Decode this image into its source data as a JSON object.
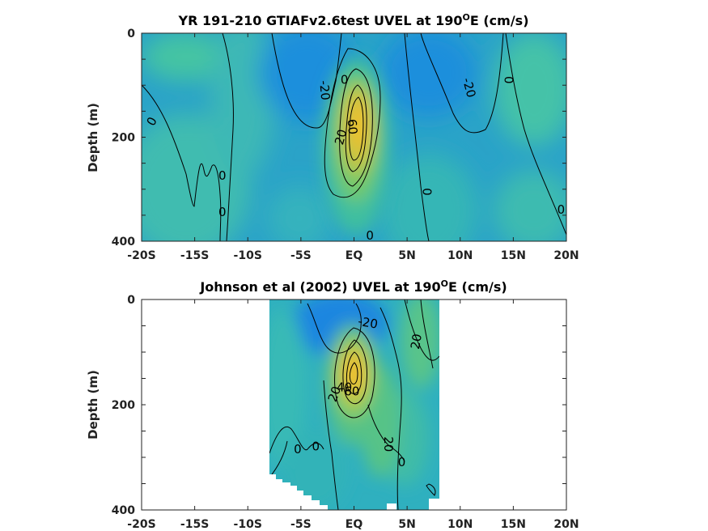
{
  "chart_data": [
    {
      "type": "contour",
      "title": "YR 191-210 GTIAFv2.6test UVEL at 190",
      "title_sup": "O",
      "title_tail": "E (cm/s)",
      "ylabel": "Depth (m)",
      "xlim": [
        -20,
        20
      ],
      "ylim": [
        0,
        400
      ],
      "x_ticks": [
        -20,
        -15,
        -10,
        -5,
        0,
        5,
        10,
        15,
        20
      ],
      "x_tick_labels": [
        "-20S",
        "-15S",
        "-10S",
        "-5S",
        "EQ",
        "5N",
        "10N",
        "15N",
        "20N"
      ],
      "y_ticks": [
        0,
        200,
        400
      ],
      "y_tick_labels": [
        "0",
        "200",
        "400"
      ],
      "contour_labels": [
        {
          "text": "0",
          "x": -19,
          "y": 170,
          "angle": -60
        },
        {
          "text": "-20",
          "x": -2.8,
          "y": 110,
          "angle": 85
        },
        {
          "text": "0",
          "x": -0.9,
          "y": 90,
          "angle": 0
        },
        {
          "text": "20",
          "x": -1.2,
          "y": 200,
          "angle": -75
        },
        {
          "text": "60",
          "x": -0.2,
          "y": 180,
          "angle": 85
        },
        {
          "text": "0",
          "x": -12.4,
          "y": 275,
          "angle": 0
        },
        {
          "text": "0",
          "x": -12.4,
          "y": 345,
          "angle": 0
        },
        {
          "text": "0",
          "x": 6.8,
          "y": 305,
          "angle": 90
        },
        {
          "text": "-20",
          "x": 10.8,
          "y": 105,
          "angle": 75
        },
        {
          "text": "0",
          "x": 14.5,
          "y": 90,
          "angle": 90
        },
        {
          "text": "0",
          "x": 1.5,
          "y": 390,
          "angle": 0
        },
        {
          "text": "0",
          "x": 19.5,
          "y": 340,
          "angle": 0
        }
      ]
    },
    {
      "type": "contour",
      "title": "Johnson et al (2002) UVEL at 190",
      "title_sup": "O",
      "title_tail": "E (cm/s)",
      "ylabel": "Depth (m)",
      "xlim": [
        -20,
        20
      ],
      "ylim": [
        0,
        400
      ],
      "data_extent_x": [
        -8,
        8
      ],
      "x_ticks": [
        -20,
        -15,
        -10,
        -5,
        0,
        5,
        10,
        15,
        20
      ],
      "x_tick_labels": [
        "-20S",
        "-15S",
        "-10S",
        "-5S",
        "EQ",
        "5N",
        "10N",
        "15N",
        "20N"
      ],
      "y_ticks": [
        0,
        200,
        400
      ],
      "y_tick_labels": [
        "0",
        "200",
        "400"
      ],
      "contour_labels": [
        {
          "text": "-20",
          "x": 1.3,
          "y": 45,
          "angle": 10
        },
        {
          "text": "20",
          "x": 5.9,
          "y": 80,
          "angle": -80
        },
        {
          "text": "20",
          "x": -1.8,
          "y": 180,
          "angle": -70
        },
        {
          "text": "40",
          "x": -0.9,
          "y": 168,
          "angle": 0
        },
        {
          "text": "60",
          "x": -0.2,
          "y": 175,
          "angle": 0
        },
        {
          "text": "0",
          "x": -5.3,
          "y": 285,
          "angle": 0
        },
        {
          "text": "0",
          "x": -3.6,
          "y": 280,
          "angle": 0
        },
        {
          "text": "20",
          "x": 3.2,
          "y": 275,
          "angle": 90
        },
        {
          "text": "0",
          "x": 4.5,
          "y": 310,
          "angle": 0
        }
      ]
    }
  ]
}
